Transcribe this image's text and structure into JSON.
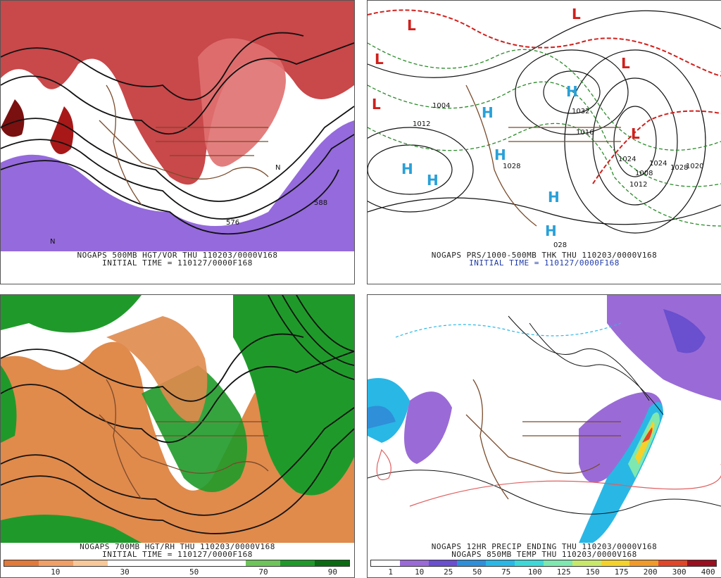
{
  "panels": [
    {
      "id": "p500",
      "caption1": "NOGAPS 500MB HGT/VOR THU 110203/0000V168",
      "caption2": "INITIAL TIME = 110127/0000F168"
    },
    {
      "id": "pprs",
      "caption1": "NOGAPS PRS/1000-500MB THK THU 110203/0000V168",
      "caption2": "INITIAL TIME = 110127/0000F168"
    },
    {
      "id": "p700",
      "caption1": "NOGAPS 700MB HGT/RH THU 110203/0000V168",
      "caption2": "INITIAL TIME = 110127/0000F168"
    },
    {
      "id": "pprecip",
      "caption1": "NOGAPS 12HR PRECIP ENDING THU 110203/0000V168",
      "caption2": "NOGAPS 850MB TEMP THU 110203/0000V168"
    }
  ],
  "pressure_labels": {
    "highs": [
      "H",
      "H",
      "H",
      "H",
      "H",
      "H",
      "H"
    ],
    "lows": [
      "L",
      "L",
      "L",
      "L",
      "L",
      "L"
    ],
    "values": [
      "1004",
      "1012",
      "1028",
      "1020",
      "1024",
      "1032",
      "1008",
      "1024",
      "1028",
      "1012",
      "028",
      "1016"
    ]
  },
  "map500_labels": [
    "576",
    "588",
    "5",
    "N",
    "N"
  ],
  "rh_colorbar": {
    "colors": [
      "#e07b3c",
      "#f0a066",
      "#f8c89a",
      "#ffffff",
      "#ffffff",
      "#ffffff",
      "#ffffff",
      "#6ec45a",
      "#1f9a2a",
      "#0a6b12"
    ],
    "labels": [
      "10",
      "30",
      "50",
      "70",
      "90"
    ]
  },
  "precip_colorbar": {
    "colors": [
      "#ffffff",
      "#9a6bd6",
      "#6a4fcf",
      "#2f8fd8",
      "#29b7e6",
      "#3ed8d8",
      "#7ee8b0",
      "#c8e86a",
      "#f5d22a",
      "#f19a2a",
      "#e0462a",
      "#9a1020"
    ],
    "labels": [
      "1",
      "10",
      "25",
      "50",
      "75",
      "100",
      "125",
      "150",
      "175",
      "200",
      "300",
      "400"
    ]
  },
  "colors": {
    "vort_pos": "#c0282a",
    "vort_neg": "#8a5ad8",
    "rh_moist": "#1f9a2a",
    "rh_dry": "#e08a4c",
    "coast": "#7a4a2a",
    "thick": "#2a8a2a",
    "low": "#d0201c",
    "high": "#29a0d8"
  }
}
